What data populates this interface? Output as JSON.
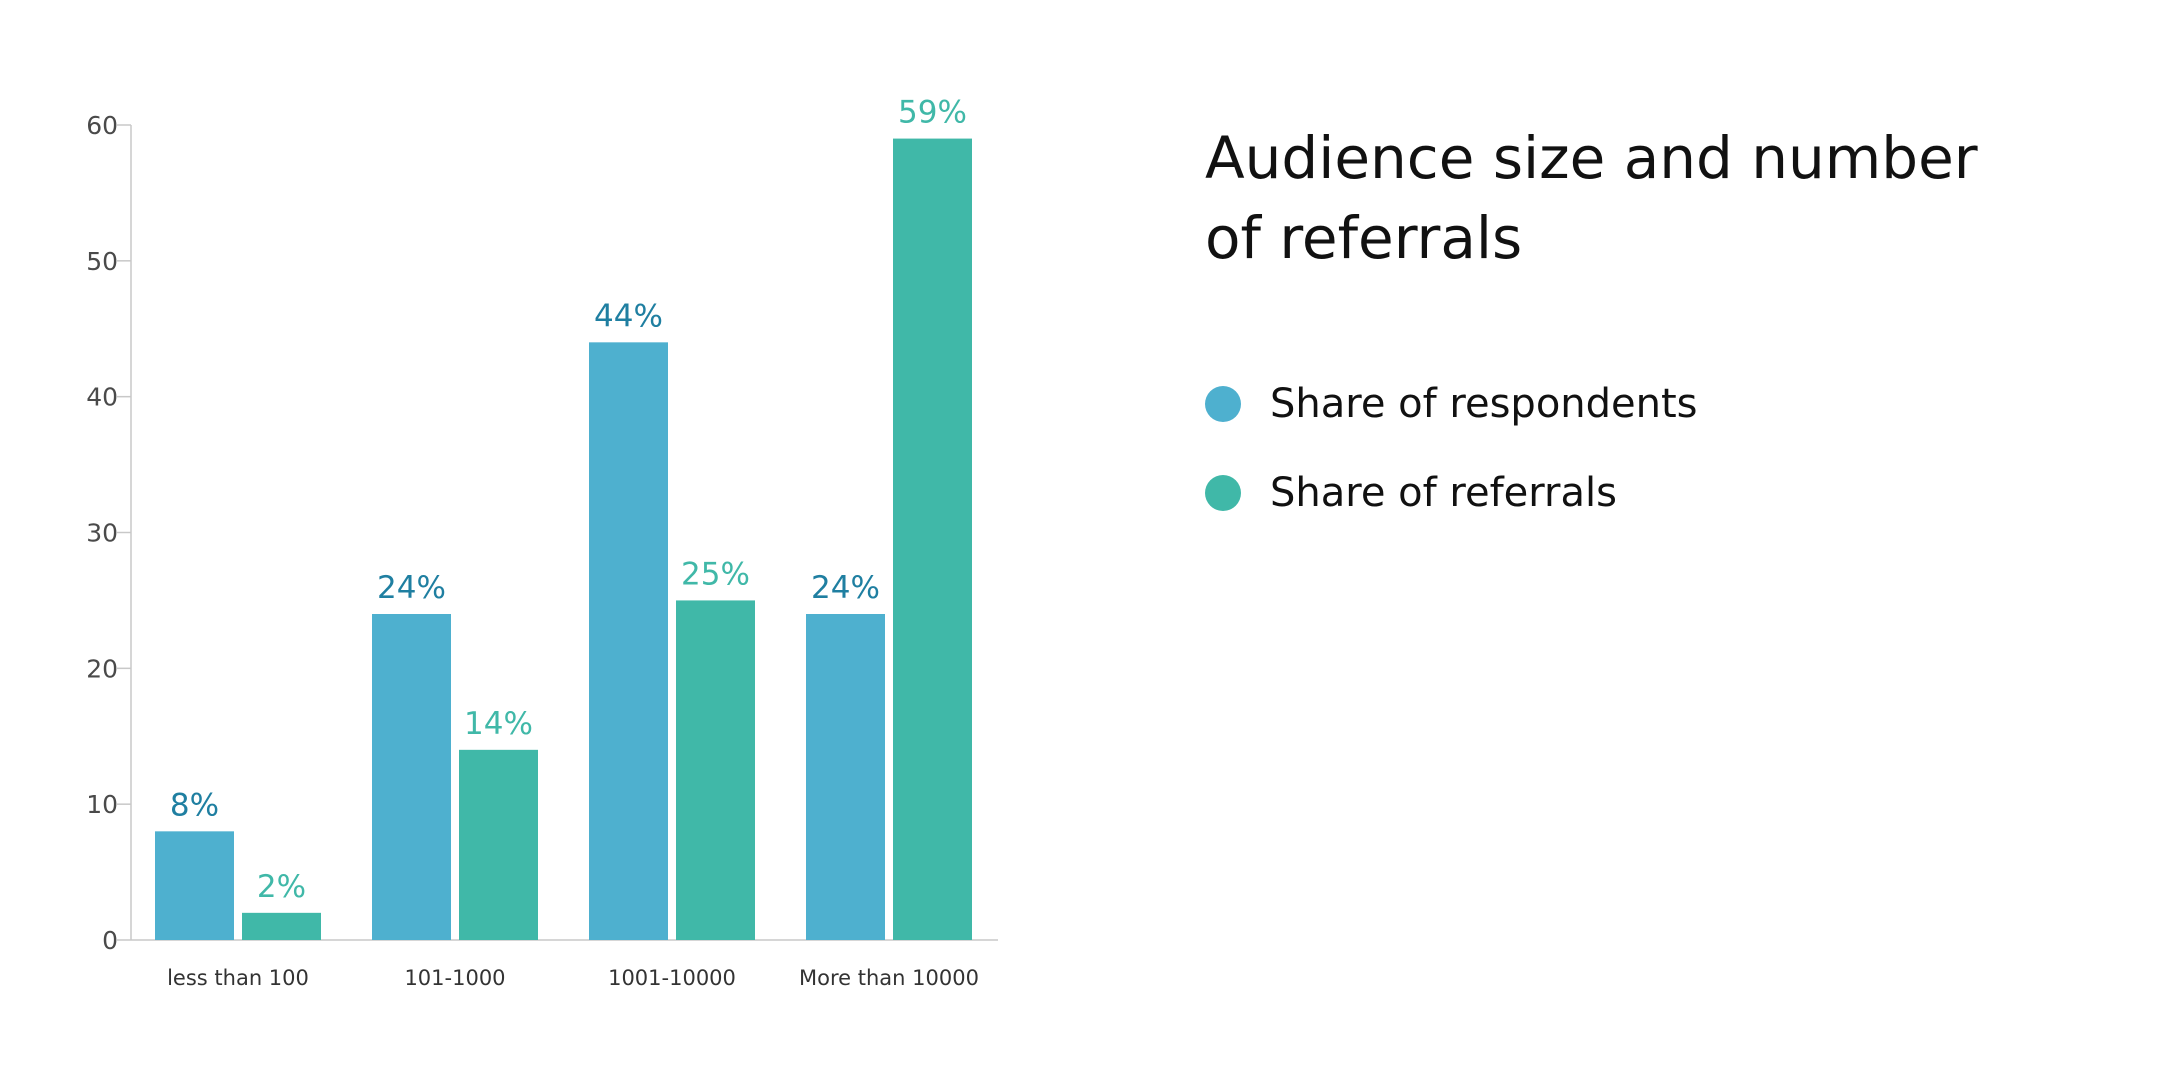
{
  "chart_data": {
    "type": "bar",
    "title": "Audience size and number of referrals",
    "xlabel": "",
    "ylabel": "",
    "ylim": [
      0,
      60
    ],
    "yticks": [
      0,
      10,
      20,
      30,
      40,
      50,
      60
    ],
    "grid": false,
    "legend_position": "right",
    "categories": [
      "less than 100",
      "101-1000",
      "1001-10000",
      "More than 10000"
    ],
    "series": [
      {
        "name": "Share of respondents",
        "values": [
          8,
          24,
          44,
          24
        ],
        "labels": [
          "8%",
          "24%",
          "44%",
          "24%"
        ],
        "color": "#4eb0cf",
        "label_color": "#1f7fa1"
      },
      {
        "name": "Share of referrals",
        "values": [
          2,
          14,
          25,
          59
        ],
        "labels": [
          "2%",
          "14%",
          "25%",
          "59%"
        ],
        "color": "#40b8a8",
        "label_color": "#40b8a8"
      }
    ],
    "axis_color": "#c8c8c8"
  }
}
